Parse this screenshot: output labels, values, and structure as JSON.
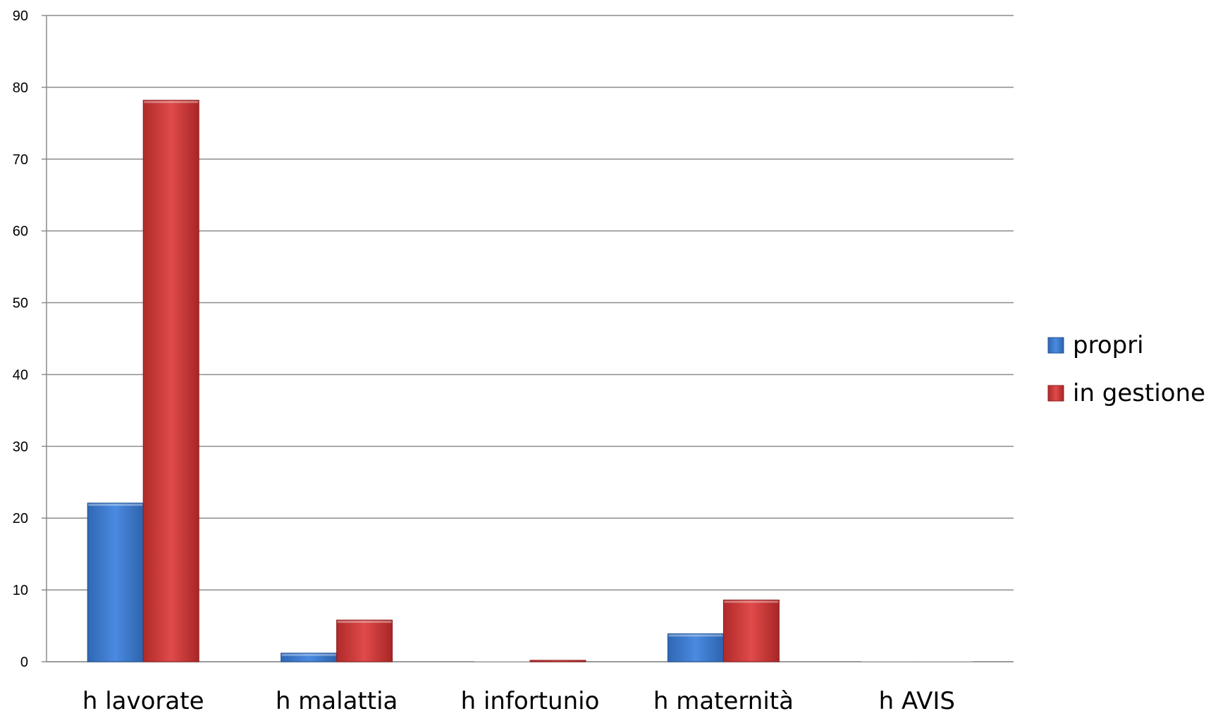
{
  "chart_data": {
    "type": "bar",
    "title": "",
    "categories": [
      "h lavorate",
      "h malattia",
      "h infortunio",
      "h maternità",
      "h AVIS"
    ],
    "series": [
      {
        "name": "propri",
        "values": [
          22.1,
          1.2,
          0,
          3.9,
          0
        ],
        "color": "#3f7fd1"
      },
      {
        "name": "in gestione",
        "values": [
          78.2,
          5.8,
          0.2,
          8.6,
          0
        ],
        "color": "#d13c3c"
      }
    ],
    "ylim": [
      0,
      90
    ],
    "yticks": [
      0,
      10,
      20,
      30,
      40,
      50,
      60,
      70,
      80,
      90
    ],
    "xlabel": "",
    "ylabel": "",
    "grid": true,
    "legend_position": "right"
  }
}
